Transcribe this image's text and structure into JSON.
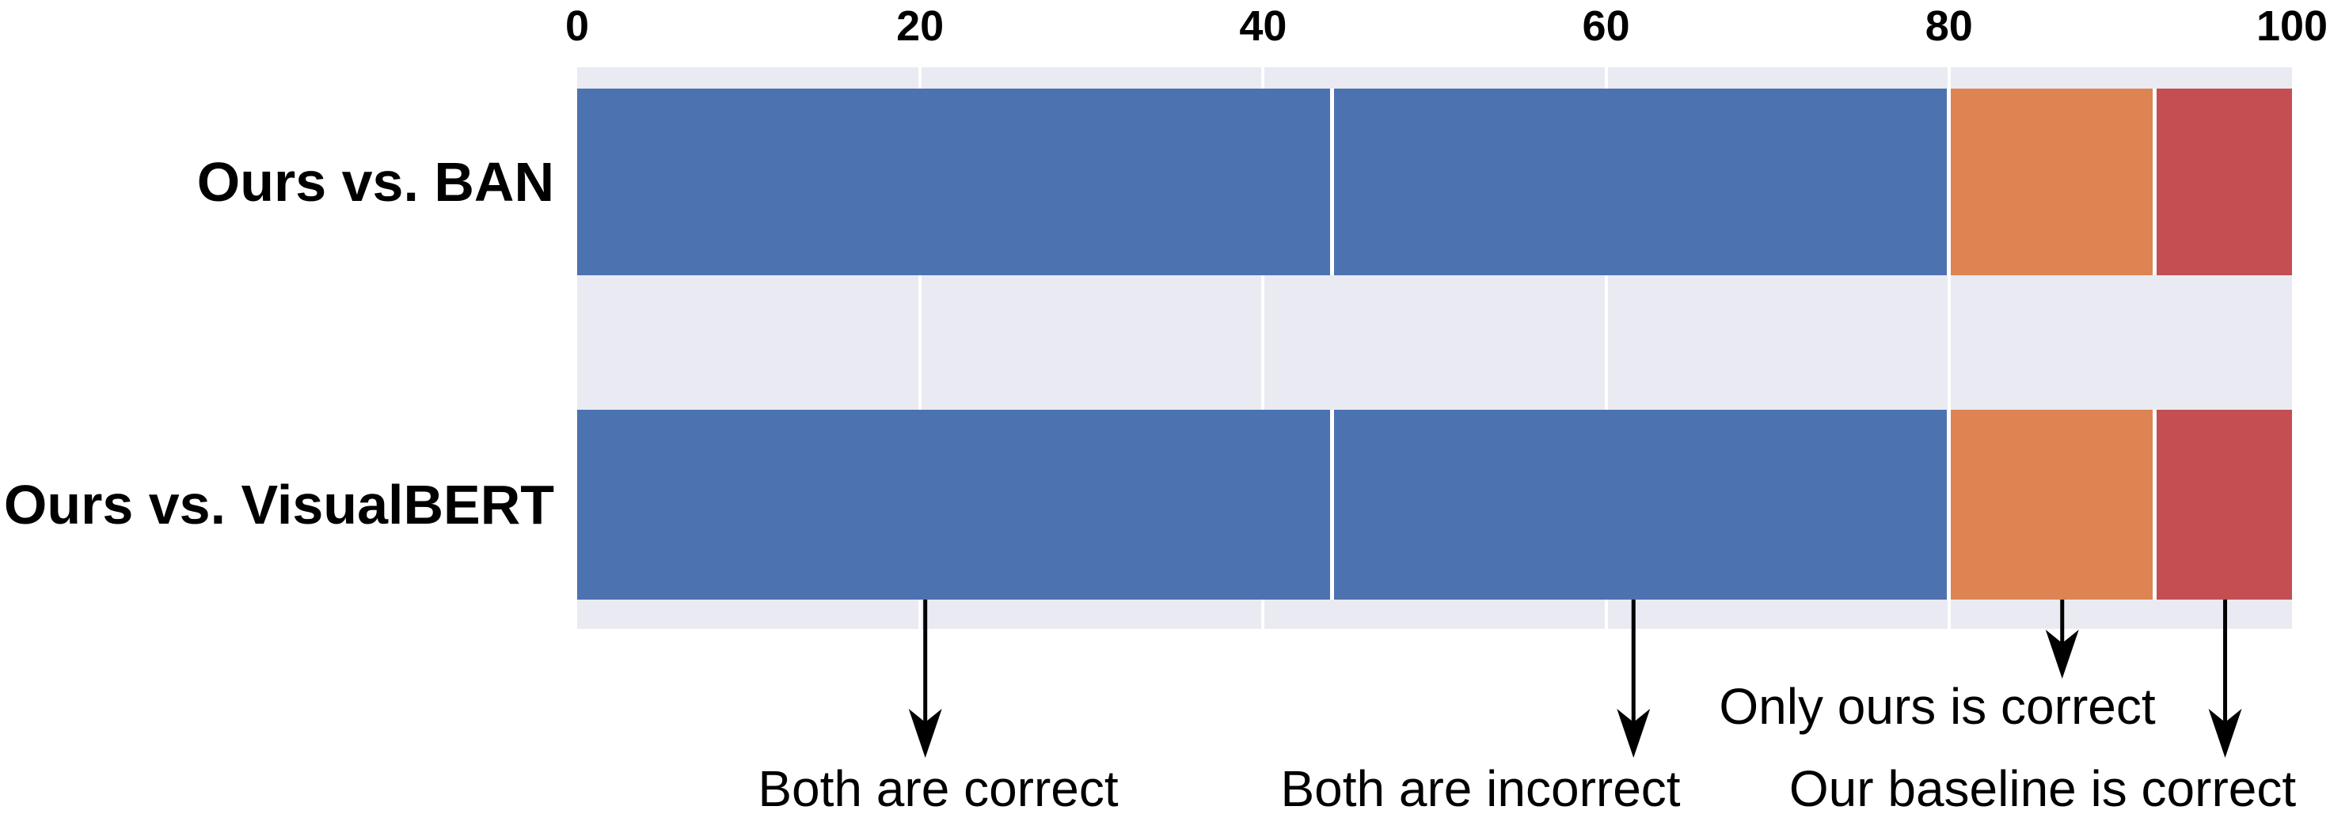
{
  "chart_data": {
    "type": "bar",
    "orientation": "horizontal",
    "stacked": true,
    "title": "",
    "xlabel": "",
    "ylabel": "",
    "xlim": [
      0,
      100
    ],
    "x_ticks": [
      "0",
      "20",
      "40",
      "60",
      "80",
      "100"
    ],
    "grid": true,
    "legend_position": "none",
    "plot_background": "#EAEAF2",
    "gridline_color": "#FFFFFF",
    "categories": [
      "Ours vs. BAN",
      "Ours vs. VisualBERT"
    ],
    "series": [
      {
        "name": "Both are correct",
        "color": "#4C72B0",
        "values": [
          44,
          44
        ]
      },
      {
        "name": "Both are incorrect",
        "color": "#4C72B0",
        "values": [
          36,
          36
        ]
      },
      {
        "name": "Only ours is correct",
        "color": "#DD8452",
        "values": [
          12,
          12
        ]
      },
      {
        "name": "Our baseline is correct",
        "color": "#C44E52",
        "values": [
          8,
          8
        ]
      }
    ],
    "annotations": [
      {
        "label": "Both are correct",
        "arrow_x": 20.3,
        "points_to_series": 0
      },
      {
        "label": "Both are incorrect",
        "arrow_x": 61.6,
        "points_to_series": 1
      },
      {
        "label": "Only ours is correct",
        "arrow_x": 86.6,
        "points_to_series": 2
      },
      {
        "label": "Our baseline is correct",
        "arrow_x": 96.1,
        "points_to_series": 3
      }
    ],
    "arrow_color": "#000000",
    "text_color": "#000000"
  }
}
